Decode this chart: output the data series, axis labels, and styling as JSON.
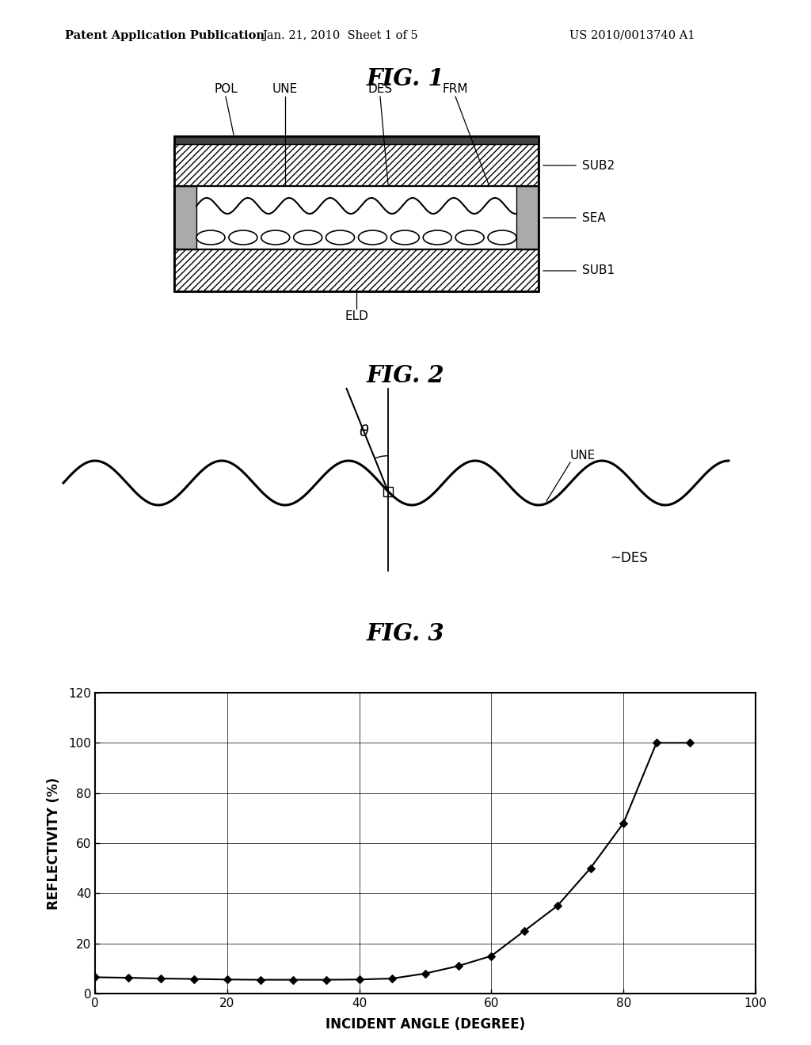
{
  "bg_color": "#ffffff",
  "header_text1": "Patent Application Publication",
  "header_text2": "Jan. 21, 2010  Sheet 1 of 5",
  "header_text3": "US 2010/0013740 A1",
  "fig1_title": "FIG. 1",
  "fig2_title": "FIG. 2",
  "fig3_title": "FIG. 3",
  "fig3_x": [
    0,
    5,
    10,
    15,
    20,
    25,
    30,
    35,
    40,
    45,
    50,
    55,
    60,
    65,
    70,
    75,
    80,
    85,
    90
  ],
  "fig3_y": [
    6.5,
    6.3,
    6.0,
    5.8,
    5.6,
    5.5,
    5.5,
    5.5,
    5.6,
    6.0,
    8.0,
    11.0,
    15.0,
    25.0,
    35.0,
    50.0,
    68.0,
    100.0,
    100.0
  ],
  "fig3_xlabel": "INCIDENT ANGLE (DEGREE)",
  "fig3_ylabel": "REFLECTIVITY (%)",
  "fig3_xlim": [
    0,
    100
  ],
  "fig3_ylim": [
    0,
    120
  ],
  "fig3_xticks": [
    0,
    20,
    40,
    60,
    80,
    100
  ],
  "fig3_yticks": [
    0,
    20,
    40,
    60,
    80,
    100,
    120
  ]
}
